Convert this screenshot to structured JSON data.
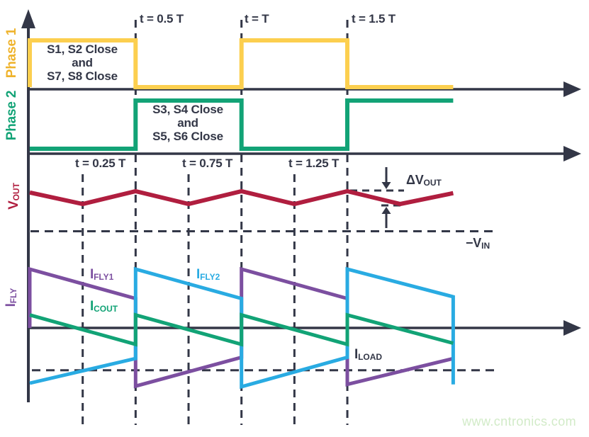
{
  "watermark": "www.cntronics.com",
  "colors": {
    "navy": "#333747",
    "red": "#B01E3F",
    "yellow": "#FCCF4F",
    "yellow_label": "#EFB32C",
    "green": "#12A376",
    "purple": "#7C4FA0",
    "cyan": "#29ABE2",
    "watermark_green": "#D2EBC8"
  },
  "axis_labels": {
    "phase1": "Phase 1",
    "phase2": "Phase 2",
    "vout": {
      "main": "V",
      "sub": "OUT"
    },
    "ifly": {
      "main": "I",
      "sub": "FLY"
    }
  },
  "time_labels": {
    "top": [
      "t = 0.5 T",
      "t = T",
      "t = 1.5 T"
    ],
    "mid": [
      "t = 0.25 T",
      "t = 0.75 T",
      "t = 1.25 T"
    ]
  },
  "captions": {
    "phase1": [
      "S1, S2 Close",
      "and",
      "S7, S8 Close"
    ],
    "phase2": [
      "S3, S4 Close",
      "and",
      "S5, S6 Close"
    ]
  },
  "annotations": {
    "delta_vout": {
      "main": "ΔV",
      "sub": "OUT"
    },
    "neg_vin": {
      "main": "−V",
      "sub": "IN"
    },
    "ifly1": {
      "main": "I",
      "sub": "FLY1"
    },
    "ifly2": {
      "main": "I",
      "sub": "FLY2"
    },
    "icout": {
      "main": "I",
      "sub": "COUT"
    },
    "iload": {
      "main": "I",
      "sub": "LOAD"
    }
  },
  "chart_data": {
    "type": "line",
    "x_axis": "time t, in units of switching period T",
    "x_range_T": [
      0,
      2
    ],
    "time_markers_T": {
      "major": [
        0.5,
        1,
        1.5
      ],
      "minor": [
        0.25,
        0.75,
        1.25
      ]
    },
    "panels": [
      {
        "id": "phase1",
        "label": "Phase 1",
        "kind": "logic",
        "levels": [
          0,
          1
        ]
      },
      {
        "id": "phase2",
        "label": "Phase 2",
        "kind": "logic",
        "levels": [
          0,
          1
        ]
      },
      {
        "id": "vout",
        "label": "VOUT",
        "kind": "ripple",
        "ripple_label": "ΔVOUT",
        "reference": "−VIN"
      },
      {
        "id": "ifly",
        "label": "IFLY",
        "kind": "current",
        "load_level": -0.72
      }
    ],
    "series": [
      {
        "id": "phase1",
        "name": "Phase 1 (S1, S2, S7, S8)",
        "color": "yellow",
        "panel": "phase1",
        "points": [
          [
            0,
            0
          ],
          [
            0,
            1
          ],
          [
            0.5,
            1
          ],
          [
            0.5,
            0
          ],
          [
            1,
            0
          ],
          [
            1,
            1
          ],
          [
            1.5,
            1
          ],
          [
            1.5,
            0
          ],
          [
            2,
            0
          ]
        ]
      },
      {
        "id": "phase2",
        "name": "Phase 2 (S3, S4, S5, S6)",
        "color": "green",
        "panel": "phase2",
        "points": [
          [
            0,
            0
          ],
          [
            0.5,
            0
          ],
          [
            0.5,
            1
          ],
          [
            1,
            1
          ],
          [
            1,
            0
          ],
          [
            1.5,
            0
          ],
          [
            1.5,
            1
          ],
          [
            2,
            1
          ]
        ]
      },
      {
        "id": "vout",
        "name": "VOUT ripple (0 = trough, 1 = peak)",
        "color": "red",
        "panel": "vout",
        "points": [
          [
            0,
            0.9
          ],
          [
            0.25,
            0
          ],
          [
            0.5,
            1
          ],
          [
            0.75,
            0
          ],
          [
            1,
            1
          ],
          [
            1.25,
            0
          ],
          [
            1.5,
            1
          ],
          [
            1.75,
            0
          ],
          [
            2,
            0.85
          ]
        ]
      },
      {
        "id": "ifly1",
        "name": "IFLY1",
        "color": "purple",
        "panel": "ifly",
        "points": [
          [
            0,
            0
          ],
          [
            0,
            1
          ],
          [
            0.5,
            0.5
          ],
          [
            0.5,
            -0.99
          ],
          [
            1,
            -0.5
          ],
          [
            1,
            1
          ],
          [
            1.5,
            0.5
          ],
          [
            1.5,
            -0.96
          ],
          [
            2,
            -0.52
          ]
        ]
      },
      {
        "id": "ifly2",
        "name": "IFLY2",
        "color": "cyan",
        "panel": "ifly",
        "points": [
          [
            0,
            -0.94
          ],
          [
            0.5,
            -0.52
          ],
          [
            0.5,
            1
          ],
          [
            1,
            0.5
          ],
          [
            1,
            -1
          ],
          [
            1.5,
            -0.5
          ],
          [
            1.5,
            1
          ],
          [
            2,
            0.53
          ],
          [
            2,
            -0.96
          ]
        ]
      },
      {
        "id": "icout",
        "name": "ICOUT",
        "color": "green",
        "panel": "ifly",
        "points": [
          [
            0,
            0.22
          ],
          [
            0.5,
            -0.28
          ],
          [
            0.5,
            0.22
          ],
          [
            1,
            -0.28
          ],
          [
            1,
            0.22
          ],
          [
            1.5,
            -0.28
          ],
          [
            1.5,
            0.22
          ],
          [
            2,
            -0.26
          ]
        ]
      }
    ]
  }
}
